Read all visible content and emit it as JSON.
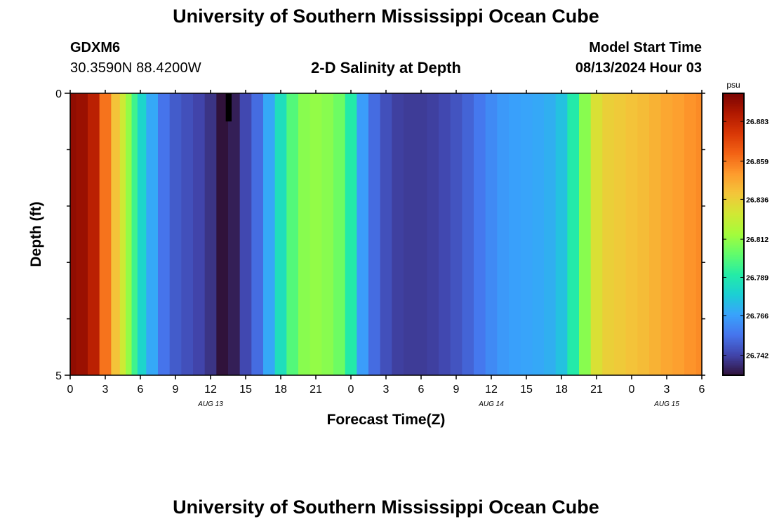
{
  "header": {
    "title": "University of Southern Mississippi Ocean Cube",
    "station_id": "GDXM6",
    "station_coords": "30.3590N  88.4200W",
    "plot_title": "2-D Salinity at Depth",
    "model_label": "Model Start Time",
    "model_time": "08/13/2024 Hour 03"
  },
  "footer": {
    "title": "University of Southern Mississippi Ocean Cube"
  },
  "chart_data": {
    "type": "heatmap",
    "title": "2-D Salinity at Depth",
    "xlabel": "Forecast Time(Z)",
    "ylabel": "Depth (ft)",
    "x_range_hours": [
      0,
      54
    ],
    "x_tick_labels": [
      "0",
      "3",
      "6",
      "9",
      "12",
      "15",
      "18",
      "21",
      "0",
      "3",
      "6",
      "9",
      "12",
      "15",
      "18",
      "21",
      "0",
      "3",
      "6"
    ],
    "date_labels": [
      {
        "label": "AUG 13",
        "hour": 12
      },
      {
        "label": "AUG 14",
        "hour": 36
      },
      {
        "label": "AUG 15",
        "hour": 51
      }
    ],
    "y_range_ft": [
      0,
      5
    ],
    "y_tick_labels": [
      "0",
      "5"
    ],
    "colorbar": {
      "unit": "psu",
      "min": 26.73,
      "max": 26.9,
      "tick_values": [
        26.742,
        26.766,
        26.789,
        26.812,
        26.836,
        26.859,
        26.883
      ],
      "tick_labels": [
        "26.742",
        "26.766",
        "26.789",
        "26.812",
        "26.836",
        "26.859",
        "26.883"
      ]
    },
    "salinity_by_hour": [
      {
        "hour": 0,
        "value": 26.895
      },
      {
        "hour": 1,
        "value": 26.893
      },
      {
        "hour": 2,
        "value": 26.885
      },
      {
        "hour": 3,
        "value": 26.86
      },
      {
        "hour": 4,
        "value": 26.84
      },
      {
        "hour": 4.5,
        "value": 26.826
      },
      {
        "hour": 5,
        "value": 26.812
      },
      {
        "hour": 5.5,
        "value": 26.796
      },
      {
        "hour": 6,
        "value": 26.781
      },
      {
        "hour": 7,
        "value": 26.768
      },
      {
        "hour": 8,
        "value": 26.754
      },
      {
        "hour": 9,
        "value": 26.748
      },
      {
        "hour": 10,
        "value": 26.745
      },
      {
        "hour": 11,
        "value": 26.742
      },
      {
        "hour": 12,
        "value": 26.738
      },
      {
        "hour": 13,
        "value": 26.73
      },
      {
        "hour": 14,
        "value": 26.733
      },
      {
        "hour": 15,
        "value": 26.743
      },
      {
        "hour": 16,
        "value": 26.752
      },
      {
        "hour": 17,
        "value": 26.768
      },
      {
        "hour": 18,
        "value": 26.785
      },
      {
        "hour": 19,
        "value": 26.8
      },
      {
        "hour": 20,
        "value": 26.81
      },
      {
        "hour": 21,
        "value": 26.812
      },
      {
        "hour": 22,
        "value": 26.81
      },
      {
        "hour": 23,
        "value": 26.805
      },
      {
        "hour": 24,
        "value": 26.79
      },
      {
        "hour": 25,
        "value": 26.765
      },
      {
        "hour": 26,
        "value": 26.752
      },
      {
        "hour": 27,
        "value": 26.745
      },
      {
        "hour": 28,
        "value": 26.741
      },
      {
        "hour": 29,
        "value": 26.74
      },
      {
        "hour": 30,
        "value": 26.74
      },
      {
        "hour": 31,
        "value": 26.741
      },
      {
        "hour": 32,
        "value": 26.743
      },
      {
        "hour": 33,
        "value": 26.746
      },
      {
        "hour": 34,
        "value": 26.75
      },
      {
        "hour": 35,
        "value": 26.755
      },
      {
        "hour": 36,
        "value": 26.76
      },
      {
        "hour": 37,
        "value": 26.764
      },
      {
        "hour": 38,
        "value": 26.766
      },
      {
        "hour": 39,
        "value": 26.767
      },
      {
        "hour": 40,
        "value": 26.768
      },
      {
        "hour": 41,
        "value": 26.77
      },
      {
        "hour": 42,
        "value": 26.775
      },
      {
        "hour": 43,
        "value": 26.79
      },
      {
        "hour": 44,
        "value": 26.81
      },
      {
        "hour": 45,
        "value": 26.83
      },
      {
        "hour": 46,
        "value": 26.836
      },
      {
        "hour": 47,
        "value": 26.838
      },
      {
        "hour": 48,
        "value": 26.84
      },
      {
        "hour": 49,
        "value": 26.842
      },
      {
        "hour": 50,
        "value": 26.845
      },
      {
        "hour": 51,
        "value": 26.848
      },
      {
        "hour": 52,
        "value": 26.85
      },
      {
        "hour": 53,
        "value": 26.853
      },
      {
        "hour": 54,
        "value": 26.855
      }
    ],
    "masked_cells": [
      {
        "hour_start": 13.3,
        "hour_end": 13.8,
        "depth_start_ft": 0,
        "depth_end_ft": 0.5
      }
    ],
    "colors": {
      "scale": [
        "#30123b",
        "#4145ab",
        "#4675ed",
        "#39a2fc",
        "#1bcfd4",
        "#24eca6",
        "#61fc6c",
        "#a4fc3b",
        "#d1e834",
        "#f3c63a",
        "#fe9b2d",
        "#f36315",
        "#d93806",
        "#b11901",
        "#7a0402"
      ],
      "masked": "#000000"
    }
  }
}
